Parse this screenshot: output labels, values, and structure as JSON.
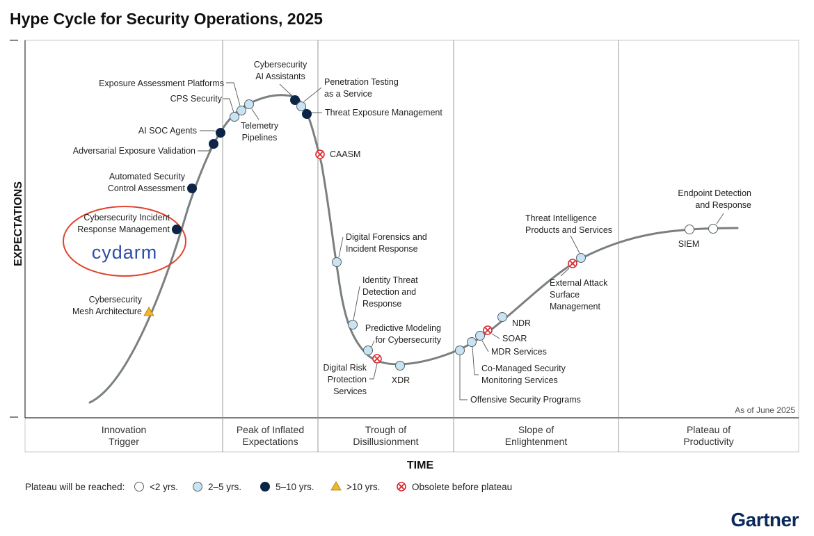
{
  "title": "Hype Cycle for Security Operations, 2025",
  "chart_data": {
    "type": "hype-cycle",
    "xlabel": "TIME",
    "ylabel": "EXPECTATIONS",
    "as_of": "As of June 2025",
    "phases": [
      {
        "lines": [
          "Innovation",
          "Trigger"
        ]
      },
      {
        "lines": [
          "Peak of Inflated",
          "Expectations"
        ]
      },
      {
        "lines": [
          "Trough of",
          "Disillusionment"
        ]
      },
      {
        "lines": [
          "Slope of",
          "Enlightenment"
        ]
      },
      {
        "lines": [
          "Plateau of",
          "Productivity"
        ]
      }
    ],
    "legend_title": "Plateau will be reached:",
    "legend": [
      {
        "category": "lt2",
        "label": "<2 yrs."
      },
      {
        "category": "2to5",
        "label": "2–5 yrs."
      },
      {
        "category": "5to10",
        "label": "5–10 yrs."
      },
      {
        "category": "gt10",
        "label": ">10 yrs."
      },
      {
        "category": "obsolete",
        "label": "Obsolete before plateau"
      }
    ],
    "technologies": [
      {
        "name": "Cybersecurity Mesh Architecture",
        "lines": [
          "Cybersecurity",
          "Mesh Architecture"
        ],
        "category": "gt10"
      },
      {
        "name": "Cybersecurity Incident Response Management",
        "lines": [
          "Cybersecurity Incident",
          "Response Management"
        ],
        "category": "5to10",
        "highlight_vendor": "cydarm"
      },
      {
        "name": "Automated Security Control Assessment",
        "lines": [
          "Automated Security",
          "Control Assessment"
        ],
        "category": "5to10"
      },
      {
        "name": "Adversarial Exposure Validation",
        "lines": [
          "Adversarial Exposure Validation"
        ],
        "category": "5to10"
      },
      {
        "name": "AI SOC Agents",
        "lines": [
          "AI SOC Agents"
        ],
        "category": "5to10"
      },
      {
        "name": "CPS Security",
        "lines": [
          "CPS Security"
        ],
        "category": "2to5"
      },
      {
        "name": "Exposure Assessment Platforms",
        "lines": [
          "Exposure Assessment Platforms"
        ],
        "category": "2to5"
      },
      {
        "name": "Telemetry Pipelines",
        "lines": [
          "Telemetry",
          "Pipelines"
        ],
        "category": "2to5"
      },
      {
        "name": "Cybersecurity AI Assistants",
        "lines": [
          "Cybersecurity",
          "AI Assistants"
        ],
        "category": "5to10"
      },
      {
        "name": "Penetration Testing as a Service",
        "lines": [
          "Penetration Testing",
          "as a Service"
        ],
        "category": "2to5"
      },
      {
        "name": "Threat Exposure Management",
        "lines": [
          "Threat Exposure Management"
        ],
        "category": "5to10"
      },
      {
        "name": "CAASM",
        "lines": [
          "CAASM"
        ],
        "category": "obsolete"
      },
      {
        "name": "Digital Forensics and Incident Response",
        "lines": [
          "Digital Forensics and",
          "Incident Response"
        ],
        "category": "2to5"
      },
      {
        "name": "Identity Threat Detection and Response",
        "lines": [
          "Identity Threat",
          "Detection and",
          "Response"
        ],
        "category": "2to5"
      },
      {
        "name": "Predictive Modeling for Cybersecurity",
        "lines": [
          "Predictive Modeling",
          "for Cybersecurity"
        ],
        "category": "2to5"
      },
      {
        "name": "Digital Risk Protection Services",
        "lines": [
          "Digital Risk",
          "Protection",
          "Services"
        ],
        "category": "obsolete"
      },
      {
        "name": "XDR",
        "lines": [
          "XDR"
        ],
        "category": "2to5"
      },
      {
        "name": "Offensive Security Programs",
        "lines": [
          "Offensive Security Programs"
        ],
        "category": "2to5"
      },
      {
        "name": "Co-Managed Security Monitoring Services",
        "lines": [
          "Co-Managed Security",
          "Monitoring Services"
        ],
        "category": "2to5"
      },
      {
        "name": "MDR Services",
        "lines": [
          "MDR Services"
        ],
        "category": "2to5"
      },
      {
        "name": "SOAR",
        "lines": [
          "SOAR"
        ],
        "category": "obsolete"
      },
      {
        "name": "NDR",
        "lines": [
          "NDR"
        ],
        "category": "2to5"
      },
      {
        "name": "External Attack Surface Management",
        "lines": [
          "External Attack",
          "Surface",
          "Management"
        ],
        "category": "obsolete"
      },
      {
        "name": "Threat Intelligence Products and Services",
        "lines": [
          "Threat Intelligence",
          "Products and Services"
        ],
        "category": "2to5"
      },
      {
        "name": "SIEM",
        "lines": [
          "SIEM"
        ],
        "category": "lt2"
      },
      {
        "name": "Endpoint Detection and Response",
        "lines": [
          "Endpoint Detection",
          "and Response"
        ],
        "category": "lt2"
      }
    ]
  },
  "highlight": {
    "vendor_text": "cydarm"
  },
  "brand": {
    "text": "Gartner"
  },
  "colors": {
    "curve": "#7a7f80",
    "lt2": "#ffffff",
    "2to5": "#c8e4f4",
    "5to10": "#0c2447",
    "gt10": "#f2b824",
    "obsolete": "#d9282c",
    "highlight_ring": "#e0432d",
    "cydarm": "#2f4fa8",
    "brand": "#0b2a5b"
  }
}
